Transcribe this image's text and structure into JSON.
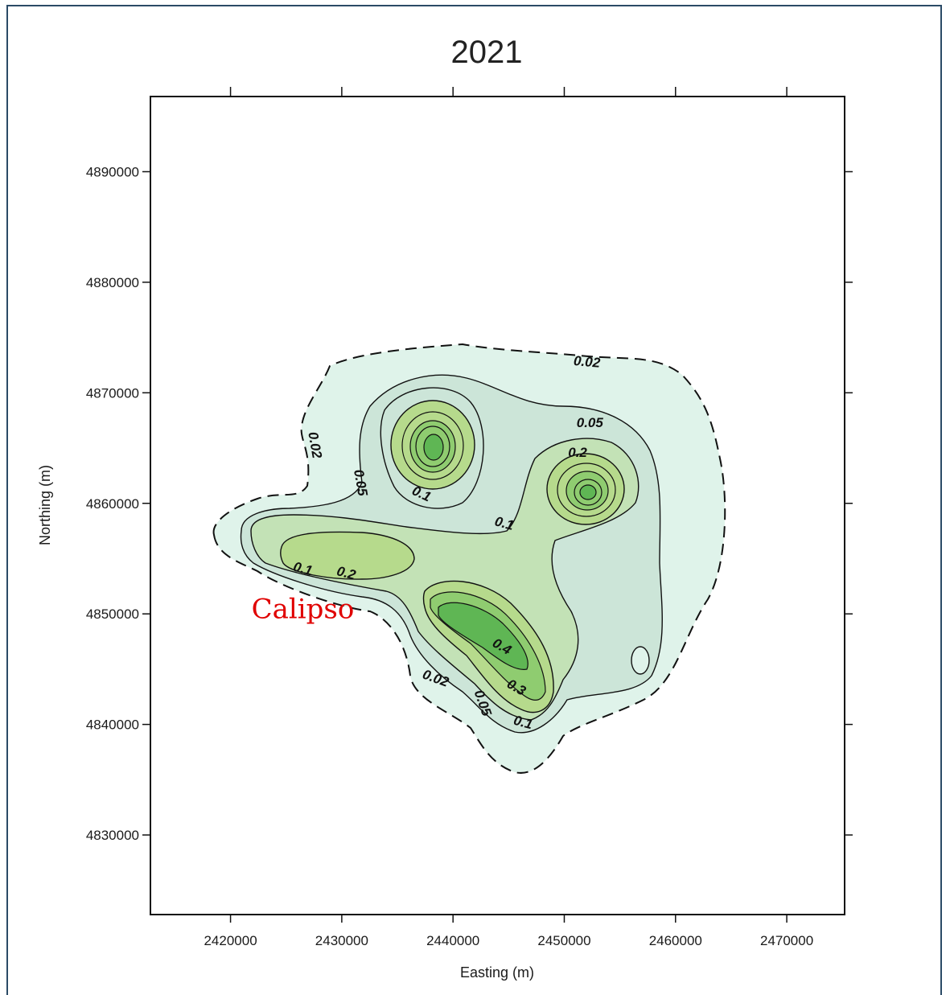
{
  "chart_data": {
    "type": "contour",
    "title": "2021",
    "xlabel": "Easting (m)",
    "ylabel": "Northing (m)",
    "xlim": [
      2412800,
      2475200
    ],
    "ylim": [
      4822800,
      4896800
    ],
    "xticks": [
      2420000,
      2430000,
      2440000,
      2450000,
      2460000,
      2470000
    ],
    "yticks": [
      4830000,
      4840000,
      4850000,
      4860000,
      4870000,
      4880000,
      4890000
    ],
    "xtick_labels": [
      "2420000",
      "2430000",
      "2440000",
      "2450000",
      "2460000",
      "2470000"
    ],
    "ytick_labels": [
      "4830000",
      "4840000",
      "4850000",
      "4860000",
      "4870000",
      "4880000",
      "4890000"
    ],
    "contour_levels": [
      0.02,
      0.05,
      0.1,
      0.2,
      0.3,
      0.4
    ],
    "fill_colors": [
      "#dff3ea",
      "#cce5d8",
      "#c3e2b6",
      "#b6da8c",
      "#8fcc70",
      "#5fb654"
    ],
    "contour_labels": [
      {
        "text": "0.02",
        "x": 2452000,
        "y": 4872400,
        "rotate": 5
      },
      {
        "text": "0.05",
        "x": 2452300,
        "y": 4866900,
        "rotate": 0
      },
      {
        "text": "0.02",
        "x": 2427200,
        "y": 4865200,
        "rotate": 80
      },
      {
        "text": "0.05",
        "x": 2431300,
        "y": 4861800,
        "rotate": 80
      },
      {
        "text": "0.1",
        "x": 2437000,
        "y": 4860500,
        "rotate": 25
      },
      {
        "text": "0.2",
        "x": 2451200,
        "y": 4864200,
        "rotate": 0
      },
      {
        "text": "0.1",
        "x": 2444500,
        "y": 4857800,
        "rotate": 15
      },
      {
        "text": "0.1",
        "x": 2426400,
        "y": 4853700,
        "rotate": 15
      },
      {
        "text": "0.2",
        "x": 2430300,
        "y": 4853300,
        "rotate": 15
      },
      {
        "text": "0.4",
        "x": 2444200,
        "y": 4846700,
        "rotate": 30
      },
      {
        "text": "0.02",
        "x": 2438300,
        "y": 4843800,
        "rotate": 20
      },
      {
        "text": "0.05",
        "x": 2442300,
        "y": 4841800,
        "rotate": 70
      },
      {
        "text": "0.3",
        "x": 2445500,
        "y": 4843000,
        "rotate": 30
      },
      {
        "text": "0.1",
        "x": 2446200,
        "y": 4839800,
        "rotate": 15
      }
    ],
    "annotations": [
      {
        "text": "Calipso",
        "x": 2426500,
        "y": 4849600
      }
    ],
    "peaks": [
      {
        "x": 2438100,
        "y": 4865100,
        "max_level": 0.4
      },
      {
        "x": 2452200,
        "y": 4861100,
        "max_level": 0.4
      },
      {
        "x": 2428500,
        "y": 4855800,
        "max_level": 0.2
      },
      {
        "x": 2441500,
        "y": 4850000,
        "max_level": 0.4
      }
    ]
  }
}
